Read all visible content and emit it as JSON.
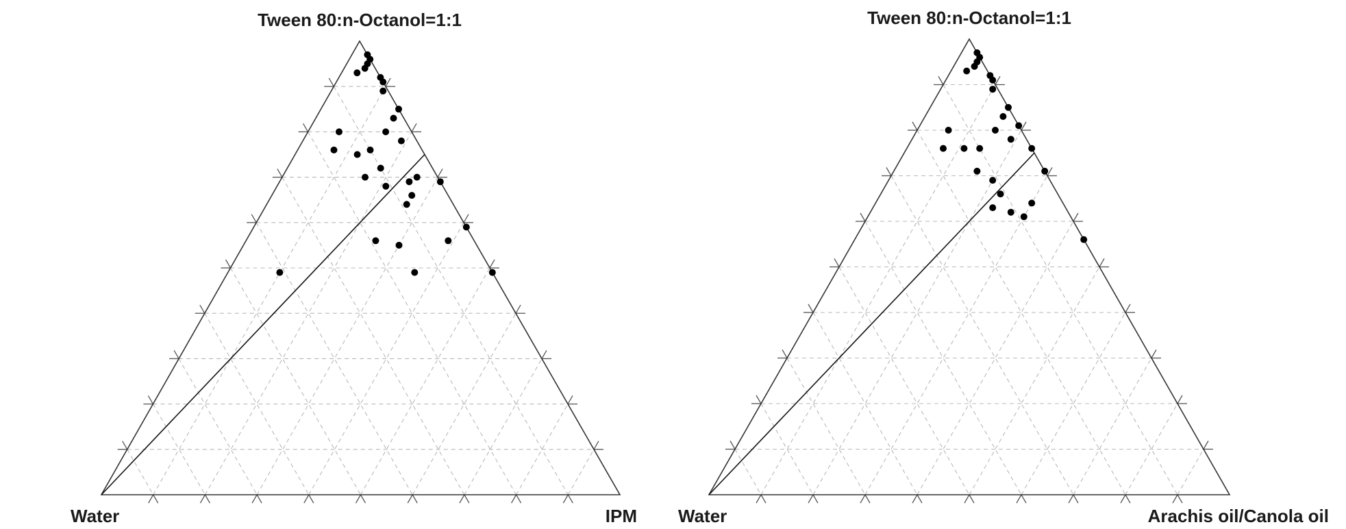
{
  "chart_data": [
    {
      "type": "scatter",
      "subtype": "ternary",
      "apex_labels": {
        "top": "Tween 80:n-Octanol=1:1",
        "left": "Water",
        "right": "IPM"
      },
      "grid": true,
      "grid_step": 0.1,
      "boundary_line": {
        "from": {
          "water": 1.0,
          "smix": 0.0,
          "oil": 0.0
        },
        "to": {
          "water": 0.0,
          "smix": 0.75,
          "oil": 0.25
        }
      },
      "points": [
        {
          "water": 0.0,
          "smix": 0.97,
          "oil": 0.03
        },
        {
          "water": 0.0,
          "smix": 0.96,
          "oil": 0.04
        },
        {
          "water": 0.01,
          "smix": 0.95,
          "oil": 0.04
        },
        {
          "water": 0.02,
          "smix": 0.94,
          "oil": 0.04
        },
        {
          "water": 0.04,
          "smix": 0.93,
          "oil": 0.03
        },
        {
          "water": 0.0,
          "smix": 0.92,
          "oil": 0.08
        },
        {
          "water": 0.0,
          "smix": 0.91,
          "oil": 0.09
        },
        {
          "water": 0.01,
          "smix": 0.89,
          "oil": 0.1
        },
        {
          "water": 0.0,
          "smix": 0.85,
          "oil": 0.15
        },
        {
          "water": 0.02,
          "smix": 0.83,
          "oil": 0.15
        },
        {
          "water": 0.05,
          "smix": 0.8,
          "oil": 0.15
        },
        {
          "water": 0.03,
          "smix": 0.78,
          "oil": 0.19
        },
        {
          "water": 0.14,
          "smix": 0.8,
          "oil": 0.06
        },
        {
          "water": 0.17,
          "smix": 0.76,
          "oil": 0.07
        },
        {
          "water": 0.13,
          "smix": 0.75,
          "oil": 0.12
        },
        {
          "water": 0.1,
          "smix": 0.76,
          "oil": 0.14
        },
        {
          "water": 0.14,
          "smix": 0.7,
          "oil": 0.16
        },
        {
          "water": 0.1,
          "smix": 0.72,
          "oil": 0.18
        },
        {
          "water": 0.11,
          "smix": 0.68,
          "oil": 0.21
        },
        {
          "water": 0.06,
          "smix": 0.69,
          "oil": 0.25
        },
        {
          "water": 0.07,
          "smix": 0.66,
          "oil": 0.27
        },
        {
          "water": 0.04,
          "smix": 0.7,
          "oil": 0.26
        },
        {
          "water": 0.09,
          "smix": 0.64,
          "oil": 0.27
        },
        {
          "water": 0.0,
          "smix": 0.69,
          "oil": 0.31
        },
        {
          "water": 0.0,
          "smix": 0.59,
          "oil": 0.41
        },
        {
          "water": 0.05,
          "smix": 0.56,
          "oil": 0.39
        },
        {
          "water": 0.19,
          "smix": 0.56,
          "oil": 0.25
        },
        {
          "water": 0.15,
          "smix": 0.55,
          "oil": 0.3
        },
        {
          "water": 0.15,
          "smix": 0.49,
          "oil": 0.36
        },
        {
          "water": 0.0,
          "smix": 0.49,
          "oil": 0.51
        },
        {
          "water": 0.41,
          "smix": 0.49,
          "oil": 0.1
        }
      ]
    },
    {
      "type": "scatter",
      "subtype": "ternary",
      "apex_labels": {
        "top": "Tween 80:n-Octanol=1:1",
        "left": "Water",
        "right": "Arachis oil/Canola oil"
      },
      "grid": true,
      "grid_step": 0.1,
      "boundary_line": {
        "from": {
          "water": 1.0,
          "smix": 0.0,
          "oil": 0.0
        },
        "to": {
          "water": 0.0,
          "smix": 0.75,
          "oil": 0.25
        }
      },
      "points": [
        {
          "water": 0.0,
          "smix": 0.97,
          "oil": 0.03
        },
        {
          "water": 0.0,
          "smix": 0.96,
          "oil": 0.04
        },
        {
          "water": 0.01,
          "smix": 0.95,
          "oil": 0.04
        },
        {
          "water": 0.02,
          "smix": 0.94,
          "oil": 0.04
        },
        {
          "water": 0.04,
          "smix": 0.93,
          "oil": 0.03
        },
        {
          "water": 0.0,
          "smix": 0.92,
          "oil": 0.08
        },
        {
          "water": 0.0,
          "smix": 0.91,
          "oil": 0.09
        },
        {
          "water": 0.01,
          "smix": 0.89,
          "oil": 0.1
        },
        {
          "water": 0.0,
          "smix": 0.85,
          "oil": 0.15
        },
        {
          "water": 0.02,
          "smix": 0.83,
          "oil": 0.15
        },
        {
          "water": 0.05,
          "smix": 0.8,
          "oil": 0.15
        },
        {
          "water": 0.03,
          "smix": 0.78,
          "oil": 0.19
        },
        {
          "water": 0.14,
          "smix": 0.8,
          "oil": 0.06
        },
        {
          "water": 0.17,
          "smix": 0.76,
          "oil": 0.07
        },
        {
          "water": 0.13,
          "smix": 0.76,
          "oil": 0.11
        },
        {
          "water": 0.1,
          "smix": 0.76,
          "oil": 0.14
        },
        {
          "water": 0.13,
          "smix": 0.71,
          "oil": 0.16
        },
        {
          "water": 0.11,
          "smix": 0.69,
          "oil": 0.2
        },
        {
          "water": 0.11,
          "smix": 0.66,
          "oil": 0.23
        },
        {
          "water": 0.11,
          "smix": 0.62,
          "oil": 0.27
        },
        {
          "water": 0.14,
          "smix": 0.63,
          "oil": 0.23
        },
        {
          "water": 0.09,
          "smix": 0.61,
          "oil": 0.3
        },
        {
          "water": 0.06,
          "smix": 0.64,
          "oil": 0.3
        },
        {
          "water": 0.0,
          "smix": 0.81,
          "oil": 0.19
        },
        {
          "water": 0.0,
          "smix": 0.76,
          "oil": 0.24
        },
        {
          "water": 0.0,
          "smix": 0.71,
          "oil": 0.29
        },
        {
          "water": 0.0,
          "smix": 0.56,
          "oil": 0.44
        }
      ]
    }
  ]
}
